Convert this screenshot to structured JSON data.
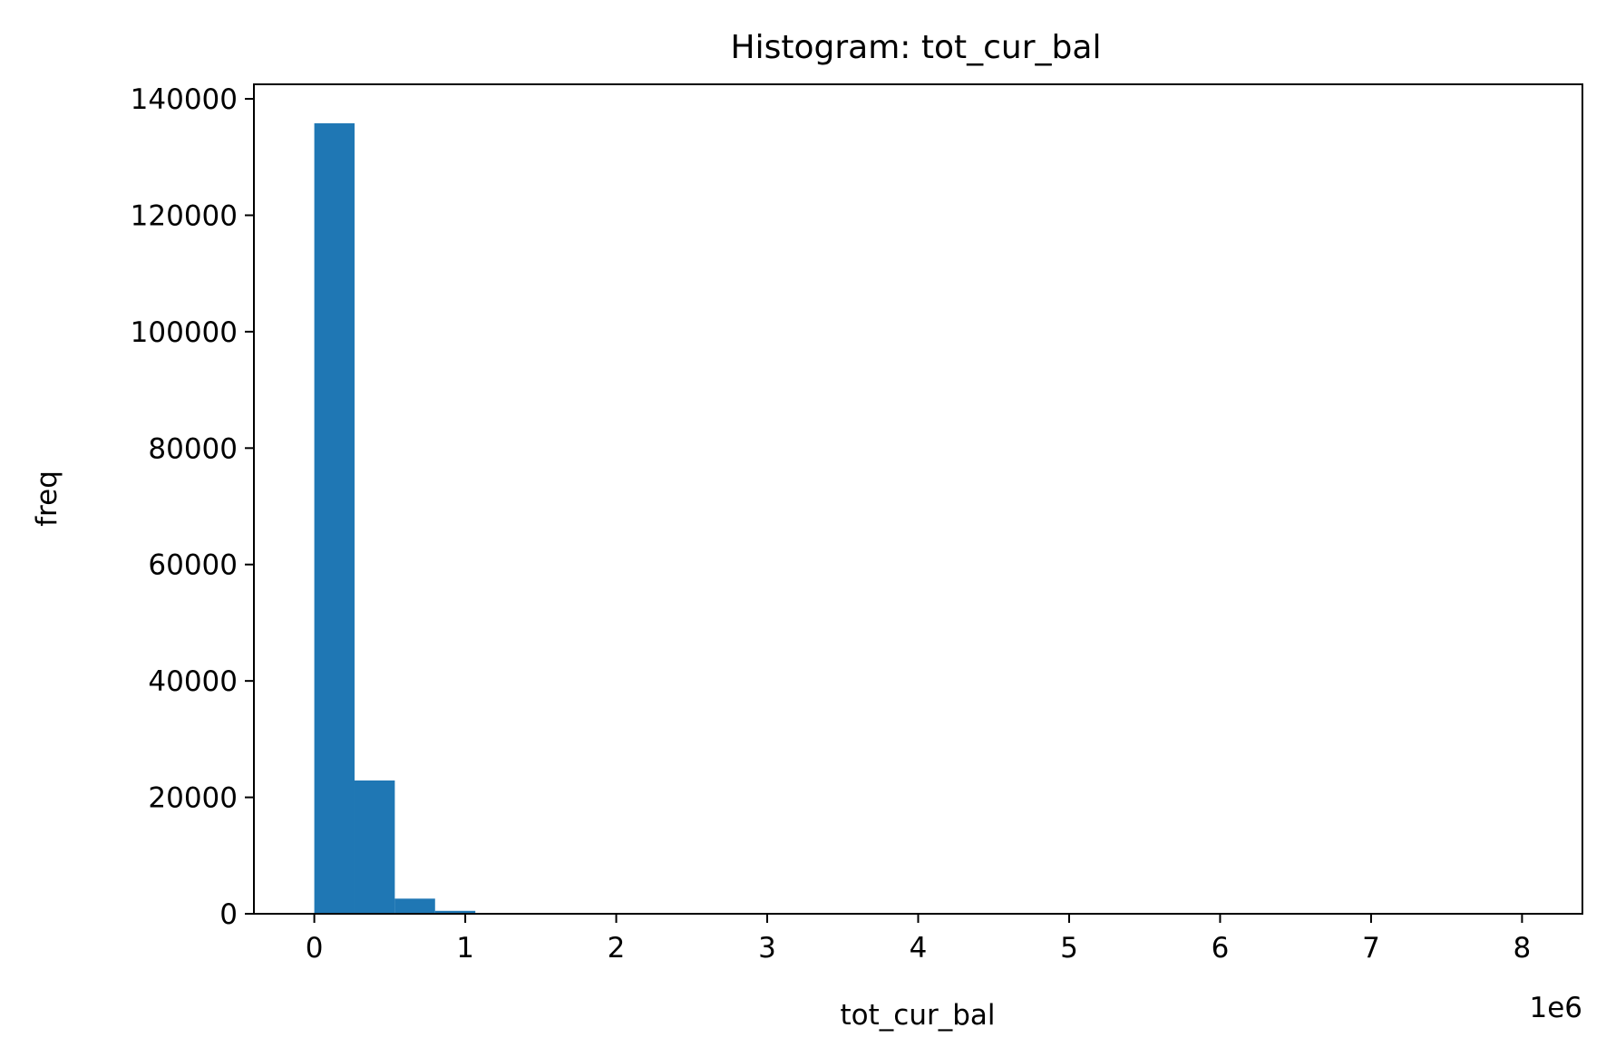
{
  "chart_data": {
    "type": "bar",
    "title": "Histogram: tot_cur_bal",
    "xlabel": "tot_cur_bal",
    "ylabel": "freq",
    "x_offset_label": "1e6",
    "xlim": [
      -0.4,
      8.4
    ],
    "ylim": [
      0,
      142500
    ],
    "x_ticks": [
      0,
      1,
      2,
      3,
      4,
      5,
      6,
      7,
      8
    ],
    "x_tick_labels": [
      "0",
      "1",
      "2",
      "3",
      "4",
      "5",
      "6",
      "7",
      "8"
    ],
    "y_ticks": [
      0,
      20000,
      40000,
      60000,
      80000,
      100000,
      120000,
      140000
    ],
    "y_tick_labels": [
      "0",
      "20000",
      "40000",
      "60000",
      "80000",
      "100000",
      "120000",
      "140000"
    ],
    "bin_edges": [
      0,
      0.2667,
      0.5333,
      0.8,
      1.0667,
      1.3333,
      1.6,
      1.8667,
      2.1333,
      2.4,
      2.6667,
      2.9333,
      3.2,
      3.4667,
      3.7333,
      4.0,
      4.2667,
      4.5333,
      4.8,
      5.0667,
      5.3333,
      5.6,
      5.8667,
      6.1333,
      6.4,
      6.6667,
      6.9333,
      7.2,
      7.4667,
      7.7333,
      8.0
    ],
    "values": [
      135800,
      22900,
      2600,
      500,
      120,
      40,
      15,
      8,
      4,
      2,
      1,
      1,
      0,
      0,
      0,
      0,
      0,
      0,
      0,
      0,
      0,
      0,
      0,
      0,
      0,
      0,
      0,
      0,
      0,
      1
    ],
    "bar_color": "#1f77b4",
    "grid": false
  }
}
